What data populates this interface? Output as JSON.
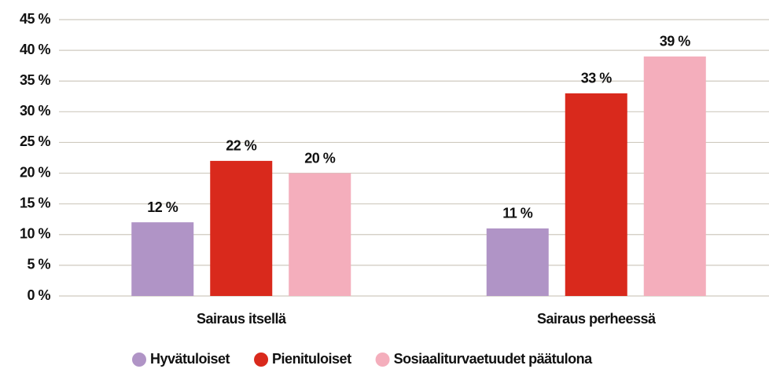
{
  "chart_data": {
    "type": "bar",
    "categories": [
      "Sairaus itsellä",
      "Sairaus perheessä"
    ],
    "series": [
      {
        "name": "Hyvätuloiset",
        "color": "#b094c6",
        "values": [
          12,
          11
        ],
        "value_labels": [
          "12 %",
          "11 %"
        ]
      },
      {
        "name": "Pienituloiset",
        "color": "#d9291c",
        "values": [
          22,
          33
        ],
        "value_labels": [
          "22 %",
          "33 %"
        ]
      },
      {
        "name": "Sosiaaliturvaetuudet päätulona",
        "color": "#f4aebc",
        "values": [
          20,
          39
        ],
        "value_labels": [
          "20 %",
          "39 %"
        ]
      }
    ],
    "ylim": [
      0,
      45
    ],
    "yticks": [
      {
        "value": 0,
        "label": "0 %"
      },
      {
        "value": 5,
        "label": "5 %"
      },
      {
        "value": 10,
        "label": "10 %"
      },
      {
        "value": 15,
        "label": "15 %"
      },
      {
        "value": 20,
        "label": "20 %"
      },
      {
        "value": 25,
        "label": "25 %"
      },
      {
        "value": 30,
        "label": "30 %"
      },
      {
        "value": 35,
        "label": "35 %"
      },
      {
        "value": 40,
        "label": "40 %"
      },
      {
        "value": 45,
        "label": "45 %"
      }
    ],
    "grid": true,
    "legend": "bottom"
  }
}
